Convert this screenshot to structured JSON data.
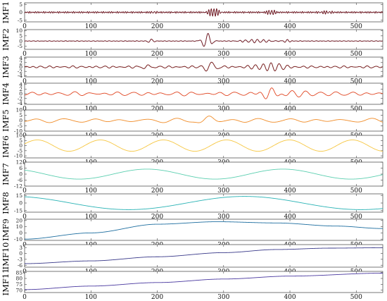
{
  "chart_data": {
    "type": "line",
    "title": "",
    "xlabel": "",
    "x_ticks": [
      0,
      100,
      200,
      300,
      400,
      500
    ],
    "x_range": [
      0,
      540
    ],
    "grid": false,
    "legend": "none",
    "panels": [
      {
        "label": "IMF1",
        "color": "#1a1a1a",
        "overlay_color": "#c0182b",
        "y_ticks": [
          -5,
          0,
          5
        ],
        "ylim": [
          -6,
          6
        ],
        "baseline": 0,
        "noise_amp": 0.6,
        "noise_period": 3,
        "bursts": [
          {
            "center": 285,
            "width": 10,
            "amp": 2.8,
            "period": 4
          },
          {
            "center": 372,
            "width": 8,
            "amp": 1.6,
            "period": 4
          },
          {
            "center": 195,
            "width": 6,
            "amp": 0.8,
            "period": 4
          },
          {
            "center": 455,
            "width": 10,
            "amp": 0.7,
            "period": 4
          }
        ],
        "waves": []
      },
      {
        "label": "IMF2",
        "color": "#1a1a1a",
        "overlay_color": "#c0182b",
        "y_ticks": [
          -5,
          0,
          5,
          10
        ],
        "ylim": [
          -8,
          11
        ],
        "baseline": 0,
        "noise_amp": 0.35,
        "noise_period": 6,
        "bursts": [
          {
            "center": 275,
            "width": 8,
            "amp": 7.5,
            "period": 14
          },
          {
            "center": 190,
            "width": 5,
            "amp": 2.2,
            "period": 10
          },
          {
            "center": 350,
            "width": 25,
            "amp": 1.5,
            "period": 9
          },
          {
            "center": 395,
            "width": 6,
            "amp": 1.6,
            "period": 8
          }
        ],
        "waves": []
      },
      {
        "label": "IMF3",
        "color": "#1a1a1a",
        "overlay_color": "#d21f1f",
        "y_ticks": [
          -4,
          -2,
          0,
          2,
          4
        ],
        "ylim": [
          -4.5,
          4.5
        ],
        "baseline": 0,
        "noise_amp": 0.55,
        "noise_period": 12,
        "bursts": [
          {
            "center": 280,
            "width": 10,
            "amp": 2.6,
            "period": 18
          },
          {
            "center": 370,
            "width": 25,
            "amp": 1.6,
            "period": 12
          },
          {
            "center": 185,
            "width": 8,
            "amp": 1.2,
            "period": 14
          }
        ],
        "waves": []
      },
      {
        "label": "IMF4",
        "color": "#e04420",
        "overlay_color": "",
        "y_ticks": [
          -4,
          -2,
          0,
          2,
          4
        ],
        "ylim": [
          -4.5,
          4.5
        ],
        "baseline": 0,
        "noise_amp": 0.9,
        "noise_period": 22,
        "bursts": [
          {
            "center": 370,
            "width": 15,
            "amp": 2.8,
            "period": 20
          },
          {
            "center": 420,
            "width": 30,
            "amp": 1.2,
            "period": 22
          }
        ],
        "waves": []
      },
      {
        "label": "IMF5",
        "color": "#f08a24",
        "overlay_color": "",
        "y_ticks": [
          -10,
          -5,
          0,
          5,
          10
        ],
        "ylim": [
          -10,
          10
        ],
        "baseline": 0,
        "noise_amp": 2.2,
        "noise_period": 42,
        "bursts": [
          {
            "center": 275,
            "width": 15,
            "amp": 4.0,
            "period": 38
          }
        ],
        "waves": []
      },
      {
        "label": "IMF6",
        "color": "#f6c640",
        "overlay_color": "",
        "y_ticks": [
          -10,
          -5,
          0,
          5,
          10
        ],
        "ylim": [
          -12,
          10
        ],
        "baseline": 0,
        "noise_amp": 0,
        "noise_period": 1,
        "bursts": [],
        "waves": [
          {
            "amp": 5.5,
            "period": 95,
            "phase": 0.3
          }
        ]
      },
      {
        "label": "IMF7",
        "color": "#5ccfb0",
        "overlay_color": "",
        "y_ticks": [
          -12,
          -6,
          0,
          6,
          12
        ],
        "ylim": [
          -12,
          12
        ],
        "baseline": 0,
        "noise_amp": 0,
        "noise_period": 1,
        "bursts": [],
        "waves": [
          {
            "amp": 5.0,
            "period": 205,
            "phase": 2.2
          }
        ]
      },
      {
        "label": "IMF8",
        "color": "#2ab3b5",
        "overlay_color": "",
        "y_ticks": [
          -15,
          0,
          15
        ],
        "ylim": [
          -18,
          18
        ],
        "baseline": 0,
        "noise_amp": 0,
        "noise_period": 1,
        "bursts": [],
        "waves": [
          {
            "amp": 13,
            "period": 350,
            "phase": 1.9
          }
        ]
      },
      {
        "label": "IMF9",
        "color": "#1f6fa0",
        "overlay_color": "",
        "y_ticks": [
          -10,
          0,
          10,
          20
        ],
        "ylim": [
          -12,
          22
        ],
        "baseline": 0,
        "noise_amp": 0,
        "noise_period": 1,
        "bursts": [],
        "waves": [],
        "trend": [
          [
            0,
            -10
          ],
          [
            100,
            0
          ],
          [
            200,
            14
          ],
          [
            290,
            18
          ],
          [
            380,
            16
          ],
          [
            470,
            11
          ],
          [
            540,
            7
          ]
        ]
      },
      {
        "label": "IMF10",
        "color": "#3a3a8a",
        "overlay_color": "",
        "y_ticks": [
          -6,
          -3,
          0,
          3
        ],
        "ylim": [
          -7,
          4.5
        ],
        "baseline": 0,
        "noise_amp": 0,
        "noise_period": 1,
        "bursts": [],
        "waves": [],
        "trend": [
          [
            0,
            -5.2
          ],
          [
            100,
            -3.8
          ],
          [
            200,
            -1.7
          ],
          [
            300,
            0.4
          ],
          [
            380,
            2.0
          ],
          [
            460,
            2.7
          ],
          [
            540,
            2.9
          ]
        ]
      },
      {
        "label": "IMF11",
        "color": "#4b3aa0",
        "overlay_color": "",
        "y_ticks": [
          70,
          75,
          80,
          85
        ],
        "ylim": [
          68,
          86
        ],
        "baseline": 0,
        "noise_amp": 0,
        "noise_period": 1,
        "bursts": [],
        "waves": [],
        "trend": [
          [
            0,
            70.5
          ],
          [
            100,
            73.5
          ],
          [
            200,
            76.5
          ],
          [
            300,
            79.5
          ],
          [
            400,
            82
          ],
          [
            540,
            84.5
          ]
        ]
      }
    ]
  }
}
